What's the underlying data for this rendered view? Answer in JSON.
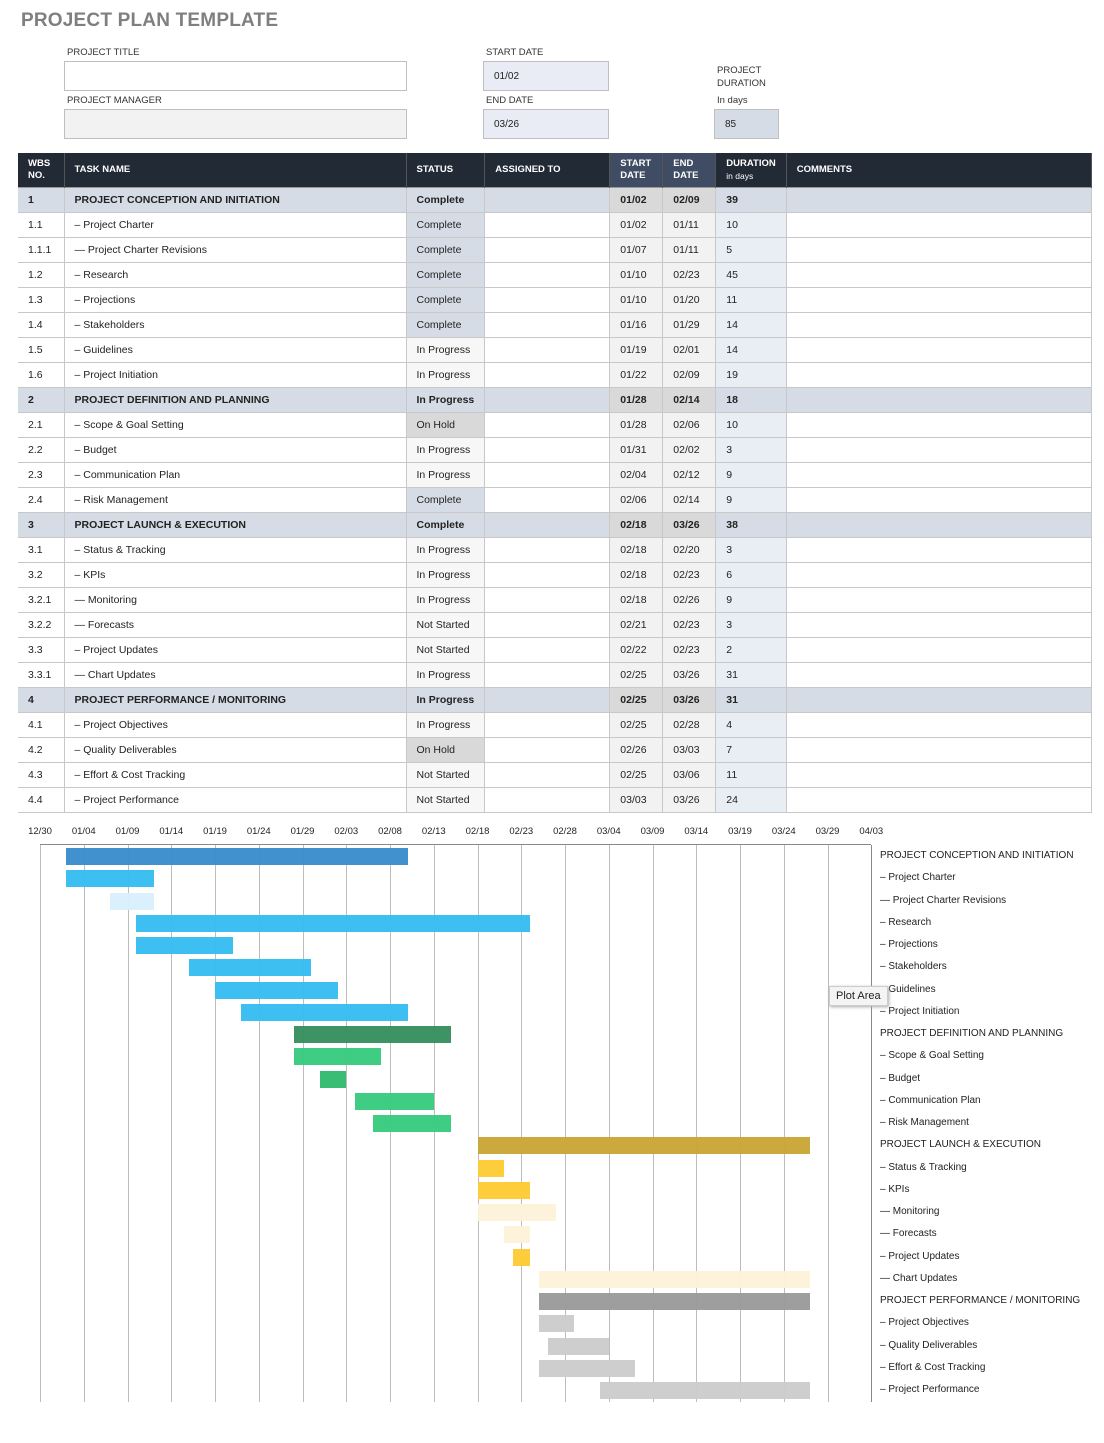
{
  "title": "PROJECT PLAN TEMPLATE",
  "form": {
    "project_title_label": "PROJECT TITLE",
    "project_title": "",
    "project_manager_label": "PROJECT MANAGER",
    "project_manager": "",
    "start_date_label": "START DATE",
    "start_date": "01/02",
    "end_date_label": "END DATE",
    "end_date": "03/26",
    "duration_label_1": "PROJECT",
    "duration_label_2": "DURATION",
    "duration_unit": "In days",
    "duration": "85"
  },
  "headers": {
    "wbs": "WBS NO.",
    "task": "TASK NAME",
    "status": "STATUS",
    "assigned": "ASSIGNED TO",
    "start": "START DATE",
    "end": "END DATE",
    "duration": "DURATION",
    "duration_unit": "in days",
    "comments": "COMMENTS"
  },
  "rows": [
    {
      "wbs": "1",
      "task": "PROJECT CONCEPTION AND INITIATION",
      "status": "Complete",
      "start": "01/02",
      "end": "02/09",
      "dur": "39",
      "group": true,
      "color": "#3a8dcc"
    },
    {
      "wbs": "1.1",
      "task": "– Project Charter",
      "status": "Complete",
      "start": "01/02",
      "end": "01/11",
      "dur": "10",
      "color": "#38bdf2"
    },
    {
      "wbs": "1.1.1",
      "task": "— Project Charter Revisions",
      "status": "Complete",
      "start": "01/07",
      "end": "01/11",
      "dur": "5",
      "color": "#d9f0fc"
    },
    {
      "wbs": "1.2",
      "task": "– Research",
      "status": "Complete",
      "start": "01/10",
      "end": "02/23",
      "dur": "45",
      "color": "#38bdf2"
    },
    {
      "wbs": "1.3",
      "task": "– Projections",
      "status": "Complete",
      "start": "01/10",
      "end": "01/20",
      "dur": "11",
      "color": "#38bdf2"
    },
    {
      "wbs": "1.4",
      "task": "– Stakeholders",
      "status": "Complete",
      "start": "01/16",
      "end": "01/29",
      "dur": "14",
      "color": "#38bdf2"
    },
    {
      "wbs": "1.5",
      "task": "– Guidelines",
      "status": "In Progress",
      "start": "01/19",
      "end": "02/01",
      "dur": "14",
      "color": "#38bdf2"
    },
    {
      "wbs": "1.6",
      "task": "– Project Initiation",
      "status": "In Progress",
      "start": "01/22",
      "end": "02/09",
      "dur": "19",
      "color": "#38bdf2"
    },
    {
      "wbs": "2",
      "task": "PROJECT DEFINITION AND PLANNING",
      "status": "In Progress",
      "start": "01/28",
      "end": "02/14",
      "dur": "18",
      "group": true,
      "color": "#378f5e"
    },
    {
      "wbs": "2.1",
      "task": "– Scope & Goal Setting",
      "status": "On Hold",
      "start": "01/28",
      "end": "02/06",
      "dur": "10",
      "color": "#39ca7f"
    },
    {
      "wbs": "2.2",
      "task": "– Budget",
      "status": "In Progress",
      "start": "01/31",
      "end": "02/02",
      "dur": "3",
      "color": "#33bb70"
    },
    {
      "wbs": "2.3",
      "task": "– Communication Plan",
      "status": "In Progress",
      "start": "02/04",
      "end": "02/12",
      "dur": "9",
      "color": "#39ca7f"
    },
    {
      "wbs": "2.4",
      "task": "– Risk Management",
      "status": "Complete",
      "start": "02/06",
      "end": "02/14",
      "dur": "9",
      "color": "#39ca7f"
    },
    {
      "wbs": "3",
      "task": "PROJECT LAUNCH & EXECUTION",
      "status": "Complete",
      "start": "02/18",
      "end": "03/26",
      "dur": "38",
      "group": true,
      "color": "#c9a636"
    },
    {
      "wbs": "3.1",
      "task": "– Status & Tracking",
      "status": "In Progress",
      "start": "02/18",
      "end": "02/20",
      "dur": "3",
      "color": "#fecb35"
    },
    {
      "wbs": "3.2",
      "task": "– KPIs",
      "status": "In Progress",
      "start": "02/18",
      "end": "02/23",
      "dur": "6",
      "color": "#fecb35"
    },
    {
      "wbs": "3.2.1",
      "task": "— Monitoring",
      "status": "In Progress",
      "start": "02/18",
      "end": "02/26",
      "dur": "9",
      "color": "#fdf3d9"
    },
    {
      "wbs": "3.2.2",
      "task": "— Forecasts",
      "status": "Not Started",
      "start": "02/21",
      "end": "02/23",
      "dur": "3",
      "color": "#fdf3d9"
    },
    {
      "wbs": "3.3",
      "task": "– Project Updates",
      "status": "Not Started",
      "start": "02/22",
      "end": "02/23",
      "dur": "2",
      "color": "#fecb35"
    },
    {
      "wbs": "3.3.1",
      "task": "— Chart Updates",
      "status": "In Progress",
      "start": "02/25",
      "end": "03/26",
      "dur": "31",
      "color": "#fdf3d9"
    },
    {
      "wbs": "4",
      "task": "PROJECT PERFORMANCE / MONITORING",
      "status": "In Progress",
      "start": "02/25",
      "end": "03/26",
      "dur": "31",
      "group": true,
      "color": "#9a9b9a"
    },
    {
      "wbs": "4.1",
      "task": "– Project Objectives",
      "status": "In Progress",
      "start": "02/25",
      "end": "02/28",
      "dur": "4",
      "color": "#cccccc"
    },
    {
      "wbs": "4.2",
      "task": "– Quality Deliverables",
      "status": "On Hold",
      "start": "02/26",
      "end": "03/03",
      "dur": "7",
      "color": "#cccccc"
    },
    {
      "wbs": "4.3",
      "task": "– Effort & Cost Tracking",
      "status": "Not Started",
      "start": "02/25",
      "end": "03/06",
      "dur": "11",
      "color": "#cccccc"
    },
    {
      "wbs": "4.4",
      "task": "– Project Performance",
      "status": "Not Started",
      "start": "03/03",
      "end": "03/26",
      "dur": "24",
      "color": "#cccccc"
    }
  ],
  "chart_data": {
    "type": "gantt",
    "x_ticks": [
      "12/30",
      "01/04",
      "01/09",
      "01/14",
      "01/19",
      "01/24",
      "01/29",
      "02/03",
      "02/08",
      "02/13",
      "02/18",
      "02/23",
      "02/28",
      "03/04",
      "03/09",
      "03/14",
      "03/19",
      "03/24",
      "03/29",
      "04/03"
    ],
    "grid": true,
    "labels_position": "right"
  },
  "tooltip": "Plot Area"
}
